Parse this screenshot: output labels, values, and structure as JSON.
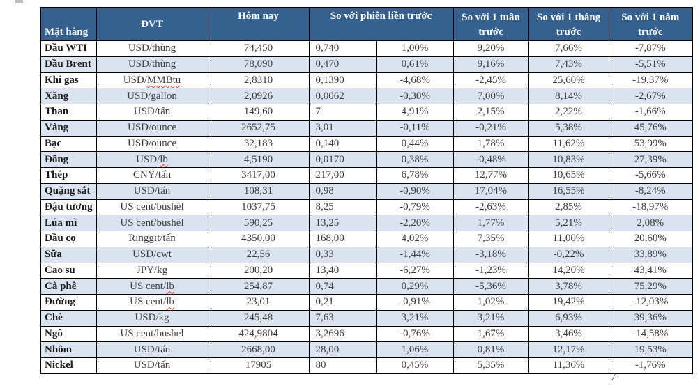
{
  "colors": {
    "header_bg": "#36618E",
    "alt_row_bg": "#DCE3F0",
    "positive_green": "#1E7B1E",
    "body_text": "#3D3D3D",
    "squiggle_red": "#E03C31"
  },
  "table": {
    "header": {
      "commodity": "Mặt hàng",
      "unit": "ĐVT",
      "today": "Hôm nay",
      "prev_session": "So với phiên liền trước",
      "week": "So với 1 tuần trước",
      "month": "So với 1 tháng trước",
      "year": "So với 1 năm trước"
    },
    "rows": [
      {
        "name": "Dầu WTI",
        "unit": "USD/thùng",
        "unit_squiggle": "",
        "today": "74,450",
        "change": "0,740",
        "change_pct": "1,00%",
        "week": "9,20%",
        "month": "7,66%",
        "year": "-7,87%",
        "highlight": ""
      },
      {
        "name": "Dầu Brent",
        "unit": "USD/thùng",
        "unit_squiggle": "",
        "today": "78,090",
        "change": "0,470",
        "change_pct": "0,61%",
        "week": "9,16%",
        "month": "7,43%",
        "year": "-5,51%",
        "highlight": ""
      },
      {
        "name": "Khí gas",
        "unit": "USD/MMBtu",
        "unit_squiggle": "MMBtu",
        "today": "2,8310",
        "change": "0,1390",
        "change_pct": "-4,68%",
        "week": "-2,45%",
        "month": "25,60%",
        "year": "-19,37%",
        "highlight": ""
      },
      {
        "name": "Xăng",
        "unit": "USD/gallon",
        "unit_squiggle": "",
        "today": "2,0926",
        "change": "0,0062",
        "change_pct": "-0,30%",
        "week": "7,00%",
        "month": "8,14%",
        "year": "-2,67%",
        "highlight": ""
      },
      {
        "name": "Than",
        "unit": "USD/tấn",
        "unit_squiggle": "",
        "today": "149,60",
        "change": "7",
        "change_pct": "4,91%",
        "week": "2,15%",
        "month": "2,22%",
        "year": "-1,66%",
        "highlight": "green"
      },
      {
        "name": "Vàng",
        "unit": "USD/ounce",
        "unit_squiggle": "",
        "today": "2652,75",
        "change": "3,01",
        "change_pct": "-0,11%",
        "week": "-0,21%",
        "month": "5,38%",
        "year": "45,76%",
        "highlight": ""
      },
      {
        "name": "Bạc",
        "unit": "USD/ounce",
        "unit_squiggle": "",
        "today": "32,183",
        "change": "0,140",
        "change_pct": "0,44%",
        "week": "1,78%",
        "month": "11,62%",
        "year": "53,99%",
        "highlight": ""
      },
      {
        "name": "Đồng",
        "unit": "USD/lb",
        "unit_squiggle": "lb",
        "today": "4,5190",
        "change": "0,0170",
        "change_pct": "0,38%",
        "week": "-0,48%",
        "month": "10,83%",
        "year": "27,39%",
        "highlight": ""
      },
      {
        "name": "Thép",
        "unit": "CNY/tấn",
        "unit_squiggle": "",
        "today": "3417,00",
        "change": "217,00",
        "change_pct": "6,78%",
        "week": "12,77%",
        "month": "10,65%",
        "year": "-5,66%",
        "highlight": ""
      },
      {
        "name": "Quặng sắt",
        "unit": "USD/tấn",
        "unit_squiggle": "",
        "today": "108,31",
        "change": "0,98",
        "change_pct": "-0,90%",
        "week": "17,04%",
        "month": "16,55%",
        "year": "-8,24%",
        "highlight": ""
      },
      {
        "name": "Đậu tương",
        "unit": "US cent/bushel",
        "unit_squiggle": "",
        "today": "1037,75",
        "change": "8,25",
        "change_pct": "-0,79%",
        "week": "-2,63%",
        "month": "2,85%",
        "year": "-18,97%",
        "highlight": ""
      },
      {
        "name": "Lúa mì",
        "unit": "US cent/bushel",
        "unit_squiggle": "",
        "today": "590,25",
        "change": "13,25",
        "change_pct": "-2,20%",
        "week": "1,77%",
        "month": "5,21%",
        "year": "2,08%",
        "highlight": ""
      },
      {
        "name": "Dầu cọ",
        "unit": "Ringgit/tấn",
        "unit_squiggle": "",
        "today": "4350,00",
        "change": "168,00",
        "change_pct": "4,02%",
        "week": "7,35%",
        "month": "11,00%",
        "year": "20,60%",
        "highlight": ""
      },
      {
        "name": "Sữa",
        "unit": "USD/cwt",
        "unit_squiggle": "",
        "today": "22,56",
        "change": "0,33",
        "change_pct": "-1,44%",
        "week": "-3,18%",
        "month": "-0,22%",
        "year": "33,89%",
        "highlight": ""
      },
      {
        "name": "Cao su",
        "unit": "JPY/kg",
        "unit_squiggle": "",
        "today": "200,20",
        "change": "13,40",
        "change_pct": "-6,27%",
        "week": "-1,23%",
        "month": "14,20%",
        "year": "43,41%",
        "highlight": ""
      },
      {
        "name": "Cà phê",
        "unit": "US cent/lb",
        "unit_squiggle": "lb",
        "today": "254,87",
        "change": "0,74",
        "change_pct": "0,29%",
        "week": "-5,36%",
        "month": "3,78%",
        "year": "75,29%",
        "highlight": ""
      },
      {
        "name": "Đường",
        "unit": "US cent/lb",
        "unit_squiggle": "lb",
        "today": "23,01",
        "change": "0,21",
        "change_pct": "-0,91%",
        "week": "1,02%",
        "month": "19,42%",
        "year": "-12,03%",
        "highlight": ""
      },
      {
        "name": "Chè",
        "unit": "USD/kg",
        "unit_squiggle": "",
        "today": "245,48",
        "change": "7,63",
        "change_pct": "3,21%",
        "week": "3,21%",
        "month": "6,93%",
        "year": "39,36%",
        "highlight": ""
      },
      {
        "name": "Ngô",
        "unit": "US cent/bushel",
        "unit_squiggle": "",
        "today": "424,9804",
        "change": "3,2696",
        "change_pct": "-0,76%",
        "week": "1,67%",
        "month": "3,46%",
        "year": "-14,58%",
        "highlight": ""
      },
      {
        "name": "Nhôm",
        "unit": "USD/tấn",
        "unit_squiggle": "",
        "today": "2668,00",
        "change": "28,00",
        "change_pct": "1,06%",
        "week": "0,81%",
        "month": "12,17%",
        "year": "19,53%",
        "highlight": ""
      },
      {
        "name": "Nickel",
        "unit": "USD/tấn",
        "unit_squiggle": "",
        "today": "17905",
        "change": "80",
        "change_pct": "0,45%",
        "week": "5,35%",
        "month": "11,36%",
        "year": "-1,76%",
        "highlight": ""
      }
    ]
  },
  "artifacts": {
    "bottom_slash": "/"
  }
}
